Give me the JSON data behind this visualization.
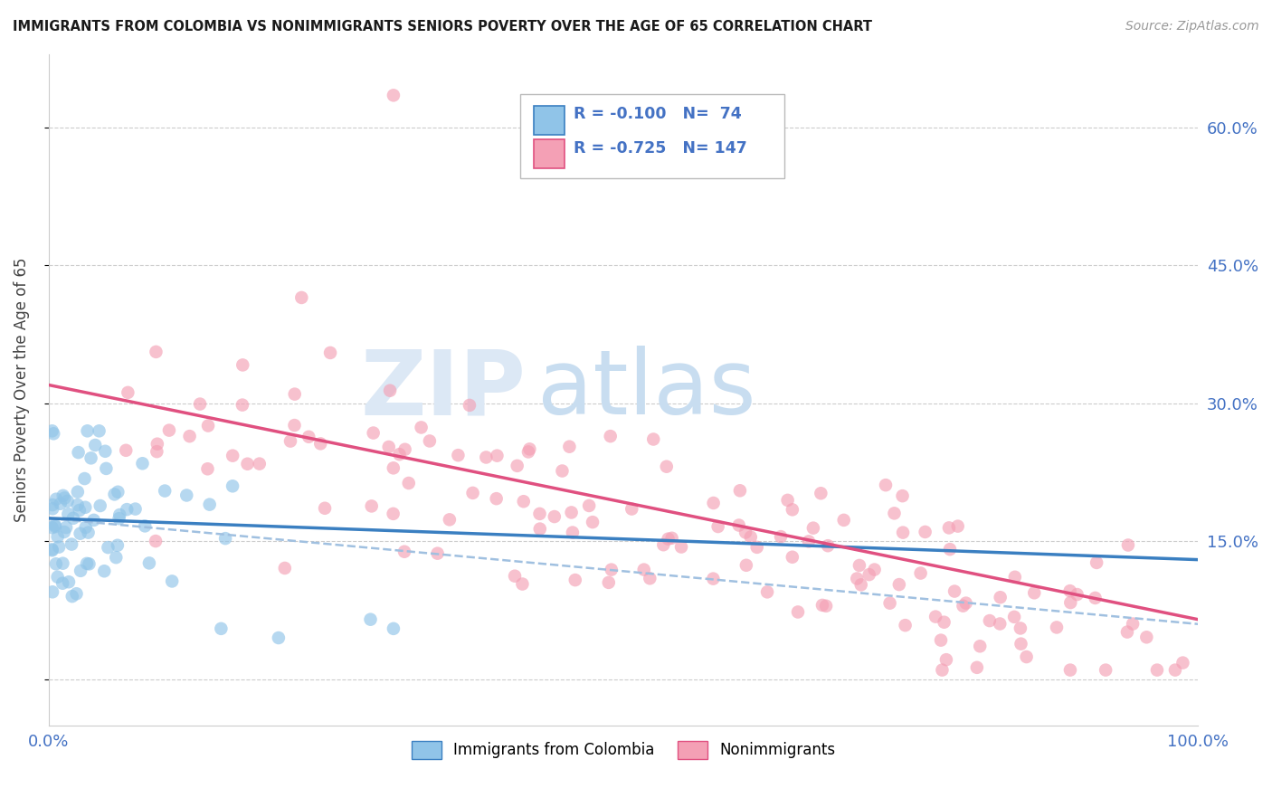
{
  "title": "IMMIGRANTS FROM COLOMBIA VS NONIMMIGRANTS SENIORS POVERTY OVER THE AGE OF 65 CORRELATION CHART",
  "source": "Source: ZipAtlas.com",
  "ylabel": "Seniors Poverty Over the Age of 65",
  "xlim": [
    0.0,
    1.0
  ],
  "ylim": [
    -0.05,
    0.68
  ],
  "yticks": [
    0.0,
    0.15,
    0.3,
    0.45,
    0.6
  ],
  "xticks": [
    0.0,
    0.25,
    0.5,
    0.75,
    1.0
  ],
  "blue_R": -0.1,
  "blue_N": 74,
  "pink_R": -0.725,
  "pink_N": 147,
  "blue_color": "#90c4e8",
  "blue_line_color": "#3a7fc1",
  "pink_color": "#f4a0b5",
  "pink_line_color": "#e05080",
  "dashed_line_color": "#a0c0e0",
  "watermark_zip_color": "#dce8f5",
  "watermark_atlas_color": "#c8ddf0",
  "background_color": "#ffffff",
  "grid_color": "#cccccc",
  "axis_label_color": "#4472c4",
  "legend_border_color": "#bbbbbb",
  "blue_line_y0": 0.175,
  "blue_line_y1": 0.13,
  "pink_line_y0": 0.32,
  "pink_line_y1": 0.065,
  "dashed_line_y0": 0.175,
  "dashed_line_y1": 0.06
}
